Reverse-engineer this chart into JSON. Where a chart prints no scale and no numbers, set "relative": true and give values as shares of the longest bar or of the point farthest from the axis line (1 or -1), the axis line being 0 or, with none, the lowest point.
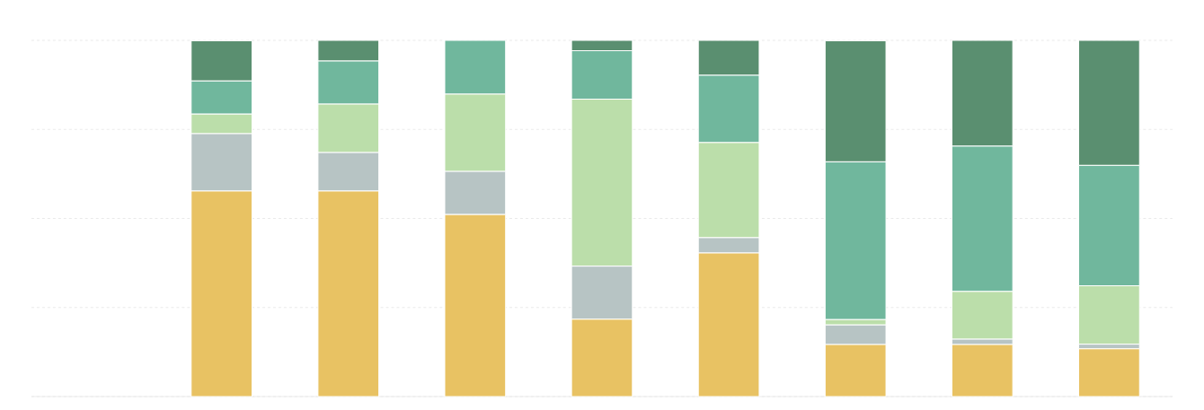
{
  "chart_data": {
    "type": "bar",
    "stacked": true,
    "relative": true,
    "grid": "y",
    "categories": [
      null,
      null,
      null,
      null,
      null,
      null,
      null,
      null
    ],
    "series": [
      {
        "color": "#e8c263",
        "values": [
          0.577,
          0.577,
          0.511,
          0.217,
          0.403,
          0.146,
          0.146,
          0.134
        ]
      },
      {
        "color": "#b7c4c4",
        "values": [
          0.161,
          0.108,
          0.121,
          0.149,
          0.043,
          0.055,
          0.015,
          0.013
        ]
      },
      {
        "color": "#bbdeaa",
        "values": [
          0.055,
          0.136,
          0.217,
          0.469,
          0.267,
          0.015,
          0.134,
          0.164
        ]
      },
      {
        "color": "#70b79d",
        "values": [
          0.093,
          0.121,
          0.151,
          0.136,
          0.189,
          0.443,
          0.408,
          0.338
        ]
      },
      {
        "color": "#5a8f70",
        "values": [
          0.113,
          0.058,
          null,
          0.029,
          0.098,
          0.34,
          0.297,
          0.351
        ]
      }
    ]
  }
}
